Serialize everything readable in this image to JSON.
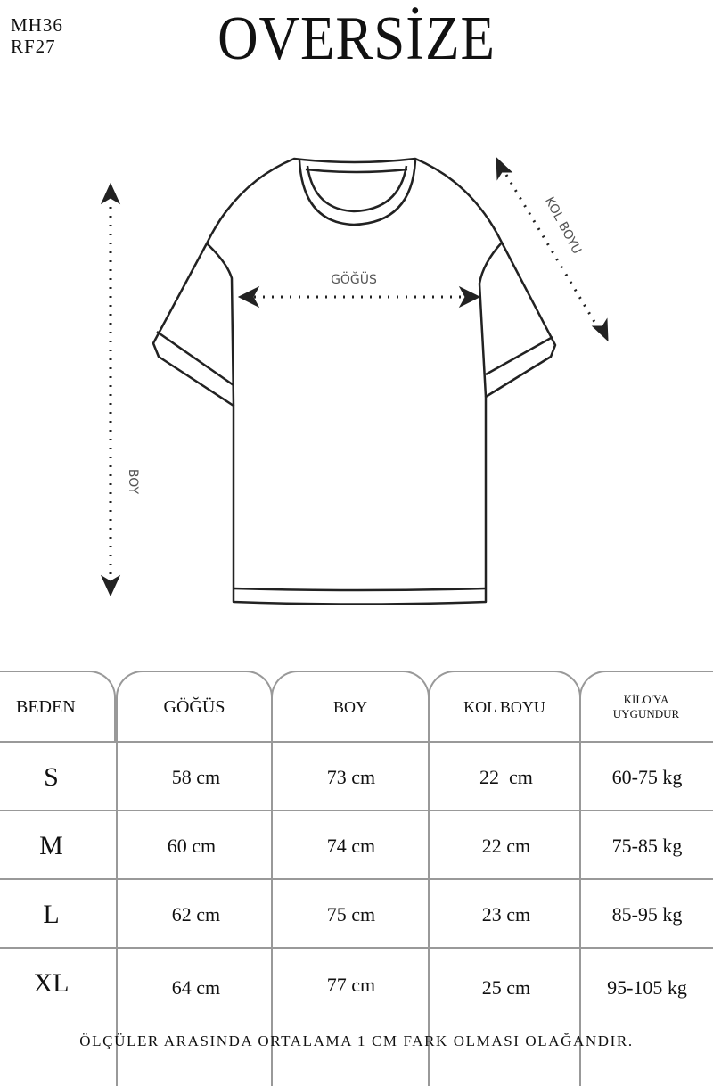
{
  "product_code": [
    "MH36",
    "RF27"
  ],
  "title": "OVERSİZE",
  "diagram": {
    "labels": {
      "chest": "GÖĞÜS",
      "sleeve": "KOL BOYU",
      "length": "BOY"
    },
    "icons": [
      "arrow-double-horizontal",
      "arrow-double-vertical",
      "arrow-double-diagonal",
      "tshirt-outline"
    ]
  },
  "table": {
    "headers": [
      "BEDEN",
      "GÖĞÜS",
      "BOY",
      "KOL BOYU",
      "KİLO'YA UYGUNDUR"
    ],
    "rows": [
      {
        "size": "S",
        "chest": "58 cm",
        "length": "73 cm",
        "sleeve": "22  cm",
        "weight": "60-75 kg"
      },
      {
        "size": "M",
        "chest": "60 cm",
        "length": "74 cm",
        "sleeve": "22 cm",
        "weight": "75-85 kg"
      },
      {
        "size": "L",
        "chest": "62 cm",
        "length": "75 cm",
        "sleeve": "23 cm",
        "weight": "85-95 kg"
      },
      {
        "size": "XL",
        "chest": "64 cm",
        "length": "77 cm",
        "sleeve": "25 cm",
        "weight": "95-105 kg"
      }
    ]
  },
  "footer_note": "ÖLÇÜLER ARASINDA ORTALAMA 1 CM FARK OLMASI OLAĞANDIR."
}
